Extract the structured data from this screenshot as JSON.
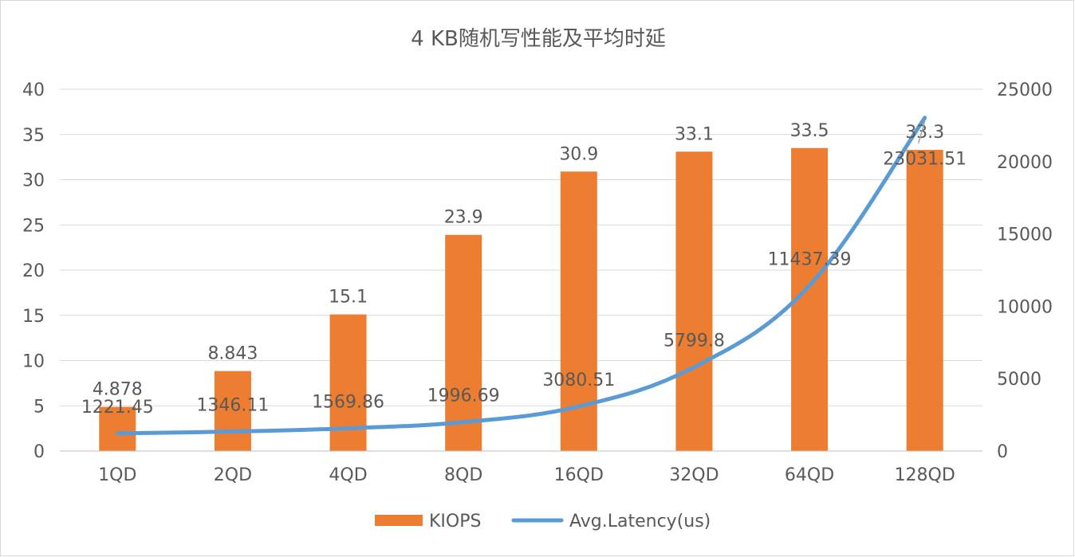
{
  "chart_data": {
    "type": "bar",
    "title": "4 KB随机写性能及平均时延",
    "categories": [
      "1QD",
      "2QD",
      "4QD",
      "8QD",
      "16QD",
      "32QD",
      "64QD",
      "128QD"
    ],
    "series": [
      {
        "name": "KIOPS",
        "type": "bar",
        "axis": "left",
        "color": "#ED7D31",
        "values": [
          4.878,
          8.843,
          15.1,
          23.9,
          30.9,
          33.1,
          33.5,
          33.3
        ],
        "labels": [
          "4.878",
          "8.843",
          "15.1",
          "23.9",
          "30.9",
          "33.1",
          "33.5",
          "33.3"
        ]
      },
      {
        "name": "Avg.Latency(us)",
        "type": "line",
        "axis": "right",
        "color": "#5B9BD5",
        "values": [
          1221.45,
          1346.11,
          1569.86,
          1996.69,
          3080.51,
          5799.8,
          11437.39,
          23031.51
        ],
        "labels": [
          "1221.45",
          "1346.11",
          "1569.86",
          "1996.69",
          "3080.51",
          "5799.8",
          "11437.39",
          "23031.51"
        ]
      }
    ],
    "y_left": {
      "min": 0,
      "max": 40,
      "ticks": [
        "0",
        "5",
        "10",
        "15",
        "20",
        "25",
        "30",
        "35",
        "40"
      ]
    },
    "y_right": {
      "min": 0,
      "max": 25000,
      "ticks": [
        "0",
        "5000",
        "10000",
        "15000",
        "20000",
        "25000"
      ]
    },
    "grid": true,
    "legend_position": "bottom",
    "colors": {
      "text": "#595959",
      "grid": "#D9D9D9",
      "axis": "#BFBFBF",
      "border": "#D9D9D9"
    }
  }
}
